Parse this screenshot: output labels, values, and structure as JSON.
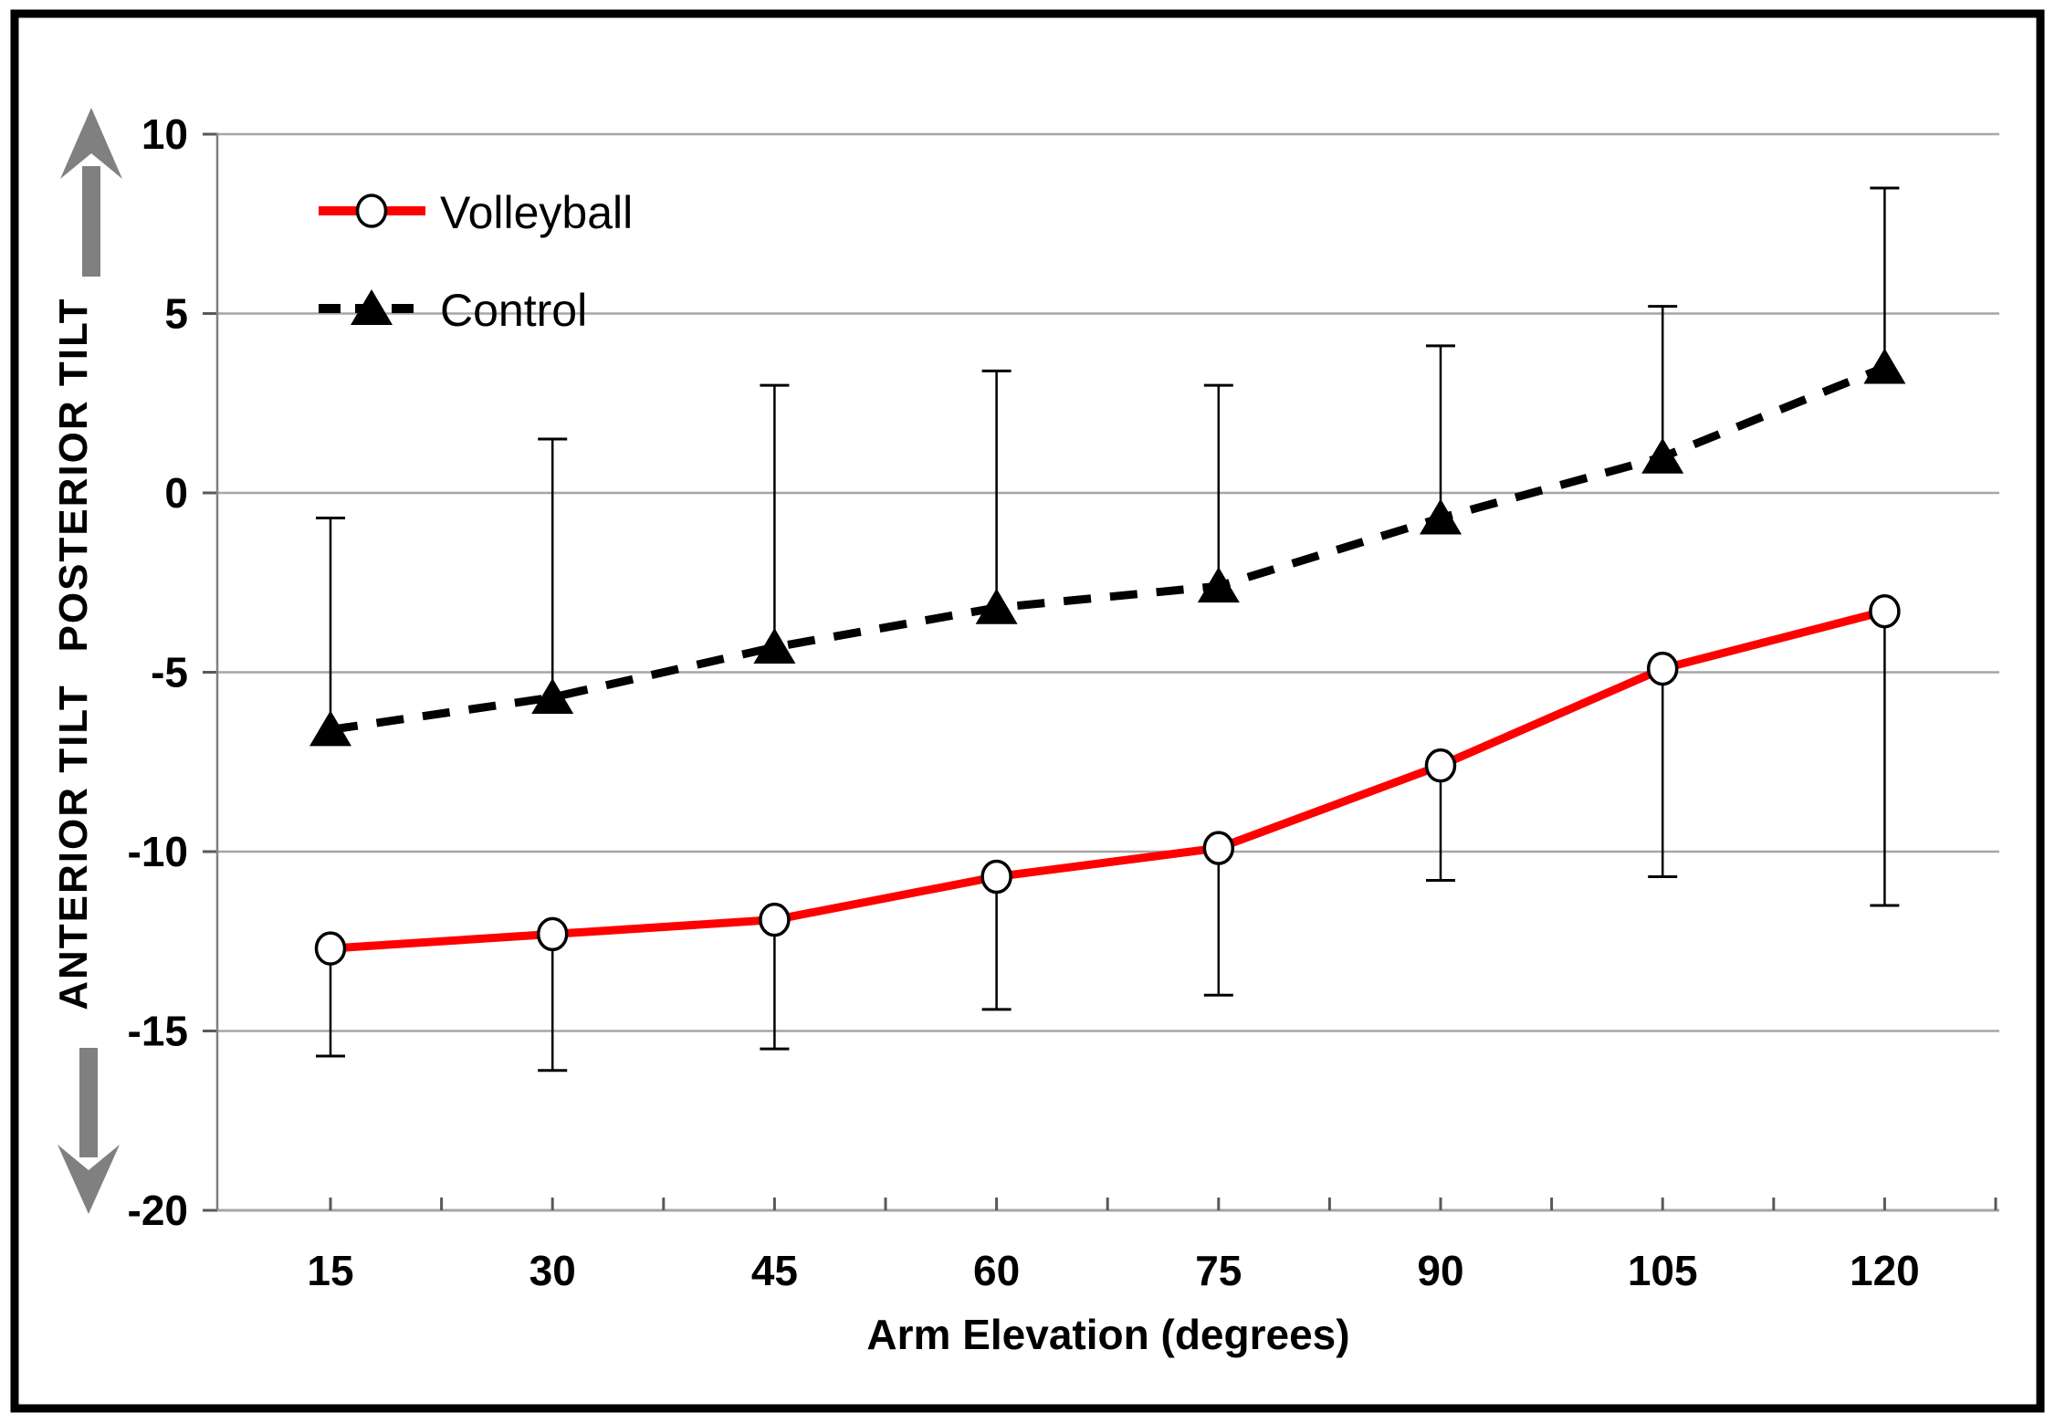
{
  "colors": {
    "volleyball_line": "#ff0000",
    "control_line": "#000000",
    "grid": "#a6a6a6",
    "axis": "#808080",
    "tick": "#595959",
    "arrow": "#808080",
    "text": "#000000",
    "marker_fill": "#ffffff",
    "border": "#000000",
    "background": "#ffffff"
  },
  "chart_data": {
    "type": "line",
    "title": "",
    "xlabel": "Arm Elevation (degrees)",
    "ylabel_upper": "POSTERIOR TILT",
    "ylabel_lower": "ANTERIOR TILT",
    "x": [
      15,
      30,
      45,
      60,
      75,
      90,
      105,
      120
    ],
    "xtick_labels": [
      "15",
      "30",
      "45",
      "60",
      "75",
      "90",
      "105",
      "120"
    ],
    "yticks": [
      10,
      5,
      0,
      -5,
      -10,
      -15,
      -20
    ],
    "ytick_labels": [
      "10",
      "5",
      "0",
      "-5",
      "-10",
      "-15",
      "-20"
    ],
    "ylim": [
      -20,
      10
    ],
    "grid": true,
    "legend_position": "inside-top-left",
    "series": [
      {
        "name": "Volleyball",
        "color": "#ff0000",
        "line_style": "solid",
        "marker": "open-circle",
        "values": [
          -12.7,
          -12.3,
          -11.9,
          -10.7,
          -9.9,
          -7.6,
          -4.9,
          -3.3
        ],
        "error_direction": "down",
        "error_end_values": [
          -15.7,
          -16.1,
          -15.5,
          -14.4,
          -14.0,
          -10.8,
          -10.7,
          -11.5
        ]
      },
      {
        "name": "Control",
        "color": "#000000",
        "line_style": "dashed",
        "marker": "filled-triangle",
        "values": [
          -6.6,
          -5.7,
          -4.3,
          -3.2,
          -2.6,
          -0.7,
          1.0,
          3.5
        ],
        "error_direction": "up",
        "error_end_values": [
          -0.7,
          1.5,
          3.0,
          3.4,
          3.0,
          4.1,
          5.2,
          8.5
        ]
      }
    ]
  }
}
